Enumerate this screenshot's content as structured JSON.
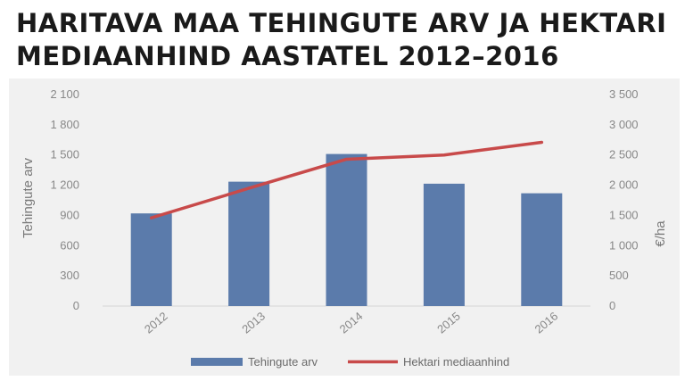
{
  "title": "HARITAVA MAA TEHINGUTE ARV JA HEKTARI MEDIAANHIND AASTATEL 2012–2016",
  "chart_data": {
    "type": "bar",
    "categories": [
      "2012",
      "2013",
      "2014",
      "2015",
      "2016"
    ],
    "series": [
      {
        "name": "Tehingute arv",
        "type": "bar",
        "axis": "left",
        "color": "#5b7bab",
        "values": [
          920,
          1235,
          1510,
          1215,
          1120
        ]
      },
      {
        "name": "Hektari mediaanhind",
        "type": "line",
        "axis": "right",
        "color": "#c84a4a",
        "values": [
          1460,
          1950,
          2430,
          2500,
          2710
        ]
      }
    ],
    "ylabel": "Tehingute  arv",
    "y2label": "€/ha",
    "ylim": [
      0,
      2100
    ],
    "y2lim": [
      0,
      3500
    ],
    "yticks": [
      "0",
      "300",
      "600",
      "900",
      "1 200",
      "1 500",
      "1 800",
      "2 100"
    ],
    "y2ticks": [
      "0",
      "500",
      "1 000",
      "1 500",
      "2 000",
      "2 500",
      "3 000",
      "3 500"
    ],
    "grid": false,
    "legend": "bottom"
  }
}
